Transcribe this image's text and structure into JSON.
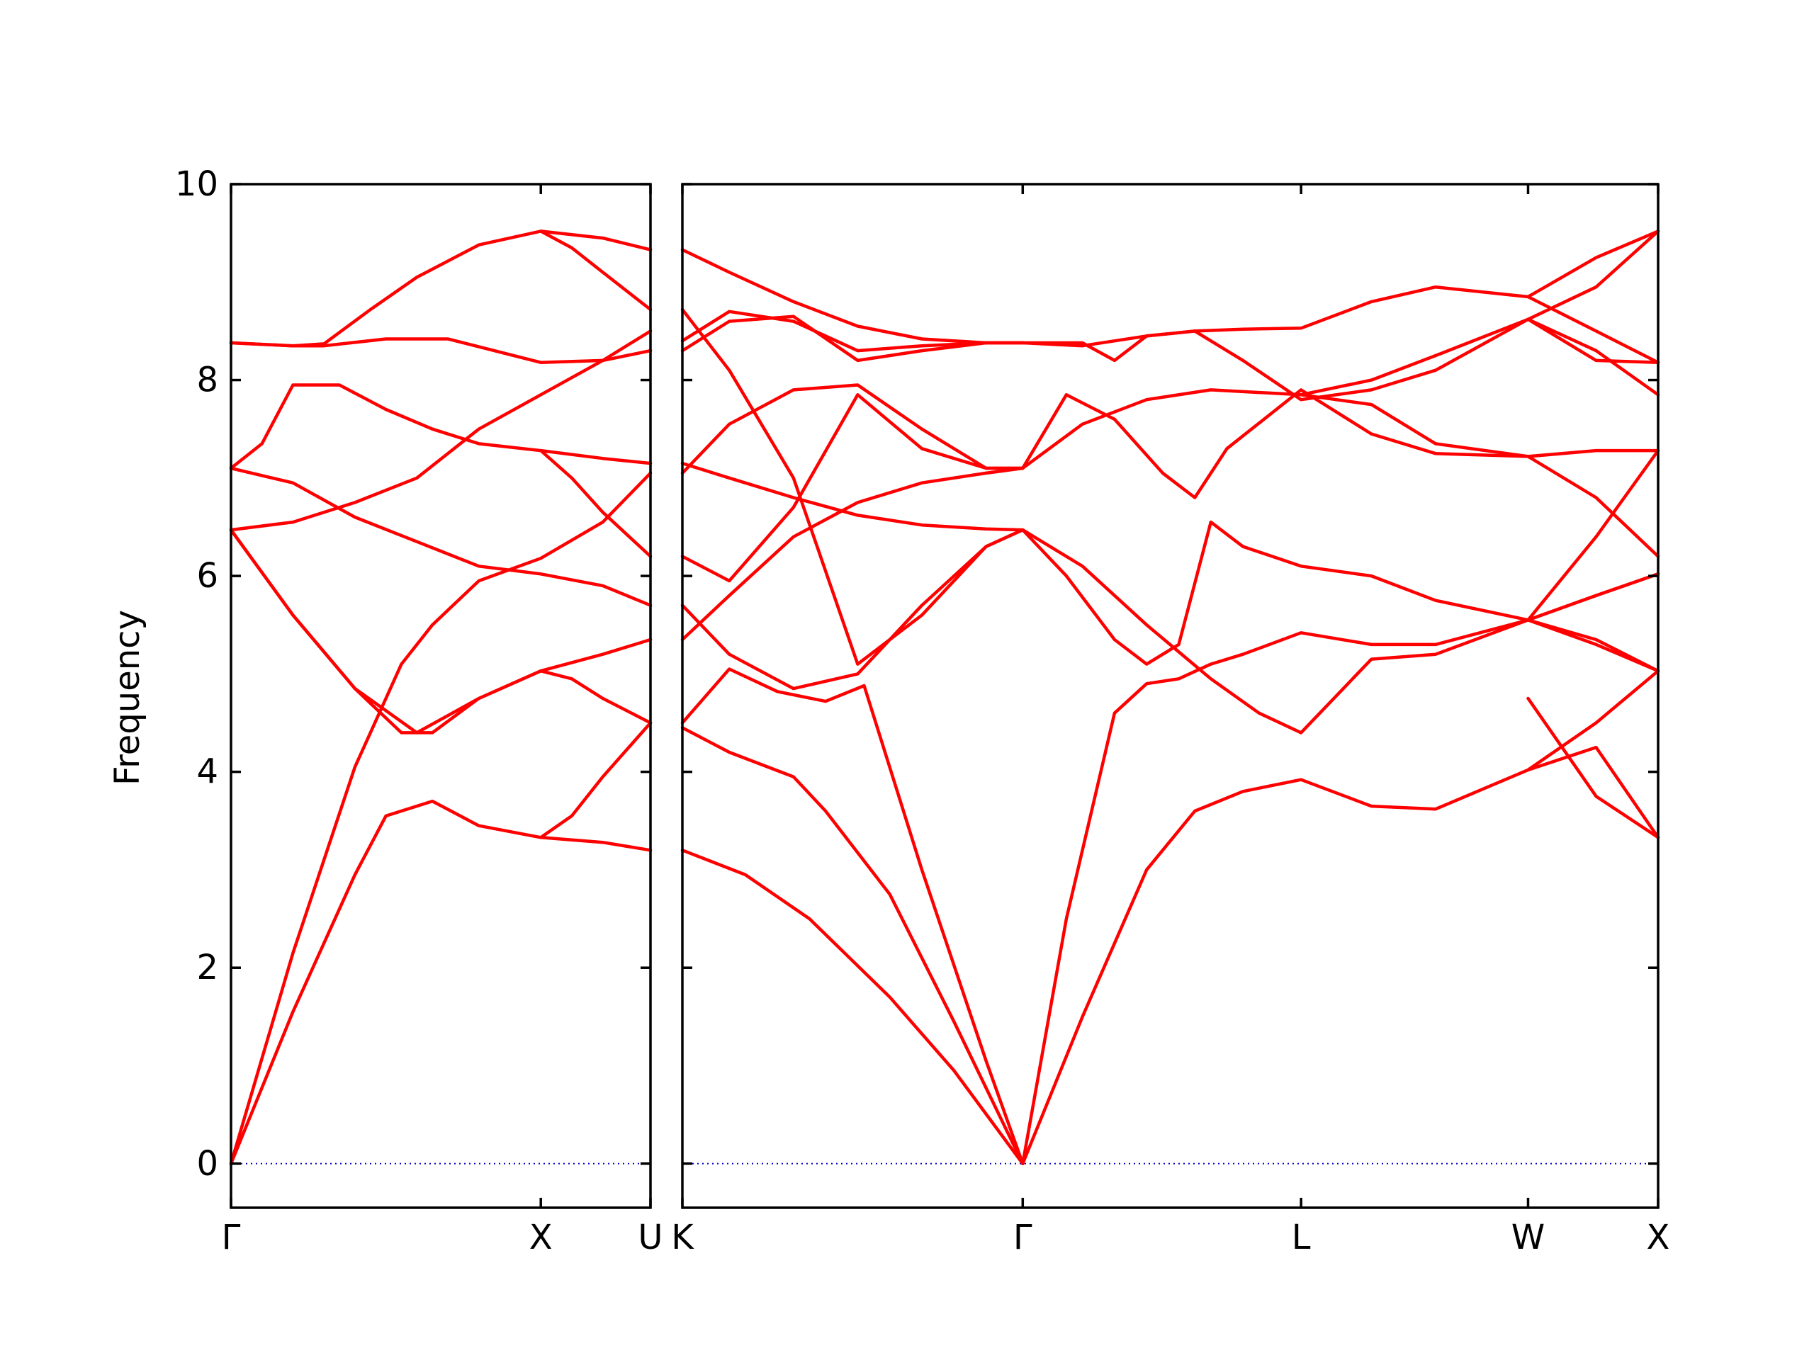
{
  "chart_data": {
    "type": "line",
    "title": "",
    "ylabel": "Frequency",
    "ylim": [
      -0.45,
      10
    ],
    "yticks": [
      0,
      2,
      4,
      6,
      8,
      10
    ],
    "y_tick_labels": [
      "0",
      "2",
      "4",
      "6",
      "8",
      "10"
    ],
    "line_color": "#ff0000",
    "zero_line_color": "#0000cc",
    "grid": false,
    "legend": "none",
    "panels": [
      {
        "xlim": [
          0,
          1.354
        ],
        "ticks": [
          {
            "x": 0,
            "label": "Γ"
          },
          {
            "x": 1.0,
            "label": "X"
          },
          {
            "x": 1.354,
            "label": "U"
          }
        ],
        "series": [
          {
            "x": [
              0,
              0.2,
              0.4,
              0.5,
              0.65,
              0.8,
              1.0,
              1.2,
              1.354
            ],
            "y": [
              0,
              1.55,
              2.95,
              3.55,
              3.7,
              3.45,
              3.33,
              3.28,
              3.2
            ]
          },
          {
            "x": [
              0,
              0.2,
              0.4,
              0.55,
              0.65,
              0.8,
              1.0,
              1.2,
              1.354
            ],
            "y": [
              0,
              2.15,
              4.05,
              5.1,
              5.5,
              5.95,
              6.18,
              6.55,
              7.05
            ]
          },
          {
            "x": [
              0,
              0.2,
              0.4,
              0.55,
              0.65,
              0.8,
              1.0,
              1.1,
              1.2,
              1.354
            ],
            "y": [
              6.47,
              5.6,
              4.85,
              4.4,
              4.4,
              4.75,
              5.03,
              4.95,
              4.75,
              4.5
            ]
          },
          {
            "x": [
              0,
              0.2,
              0.4,
              0.6,
              0.8,
              1.0,
              1.2,
              1.354
            ],
            "y": [
              7.1,
              6.95,
              6.6,
              6.35,
              6.1,
              6.02,
              5.9,
              5.7
            ]
          },
          {
            "x": [
              0,
              0.2,
              0.4,
              0.6,
              0.8,
              1.0,
              1.2,
              1.354
            ],
            "y": [
              6.47,
              6.55,
              6.75,
              7.0,
              7.5,
              7.85,
              8.2,
              8.5
            ]
          },
          {
            "x": [
              0,
              0.1,
              0.2,
              0.35,
              0.5,
              0.65,
              0.8,
              1.0,
              1.2,
              1.354
            ],
            "y": [
              7.1,
              7.35,
              7.95,
              7.95,
              7.7,
              7.5,
              7.35,
              7.28,
              7.2,
              7.15
            ]
          },
          {
            "x": [
              0,
              0.2,
              0.3,
              0.5,
              0.7,
              0.85,
              1.0,
              1.2,
              1.354
            ],
            "y": [
              8.38,
              8.35,
              8.35,
              8.42,
              8.42,
              8.3,
              8.18,
              8.2,
              8.3
            ]
          },
          {
            "x": [
              0,
              0.2,
              0.3,
              0.45,
              0.6,
              0.8,
              1.0,
              1.2,
              1.354
            ],
            "y": [
              8.38,
              8.35,
              8.37,
              8.72,
              9.05,
              9.38,
              9.52,
              9.45,
              9.33
            ]
          },
          {
            "x": [
              0,
              0.2,
              0.4,
              0.6,
              0.8,
              1.0,
              1.2,
              1.354
            ],
            "y": [
              6.47,
              5.6,
              4.85,
              4.4,
              4.75,
              5.03,
              5.2,
              5.35
            ]
          },
          {
            "x": [
              1.0,
              1.1,
              1.2,
              1.354
            ],
            "y": [
              3.33,
              3.55,
              3.95,
              4.5
            ]
          },
          {
            "x": [
              1.0,
              1.1,
              1.2,
              1.354
            ],
            "y": [
              7.28,
              7.0,
              6.65,
              6.2
            ]
          },
          {
            "x": [
              1.0,
              1.1,
              1.2,
              1.354
            ],
            "y": [
              9.52,
              9.35,
              9.1,
              8.72
            ]
          }
        ]
      },
      {
        "xlim": [
          1.354,
          4.393
        ],
        "ticks": [
          {
            "x": 1.354,
            "label": "K"
          },
          {
            "x": 2.414,
            "label": "Γ"
          },
          {
            "x": 3.281,
            "label": "L"
          },
          {
            "x": 3.988,
            "label": "W"
          },
          {
            "x": 4.393,
            "label": "X"
          }
        ],
        "series": [
          {
            "x": [
              1.354,
              1.55,
              1.75,
              2.0,
              2.2,
              2.414
            ],
            "y": [
              3.2,
              2.95,
              2.5,
              1.7,
              0.95,
              0
            ]
          },
          {
            "x": [
              1.354,
              1.5,
              1.7,
              1.8,
              2.0,
              2.2,
              2.414
            ],
            "y": [
              4.45,
              4.2,
              3.95,
              3.6,
              2.75,
              1.45,
              0
            ]
          },
          {
            "x": [
              1.354,
              1.5,
              1.65,
              1.8,
              1.92,
              2.1,
              2.3,
              2.414
            ],
            "y": [
              4.5,
              5.05,
              4.82,
              4.72,
              4.88,
              3.0,
              1.05,
              0
            ]
          },
          {
            "x": [
              2.414,
              2.6,
              2.8,
              2.95,
              3.1,
              3.281,
              3.5,
              3.7,
              3.988,
              4.2,
              4.393
            ],
            "y": [
              0,
              1.5,
              3.0,
              3.6,
              3.8,
              3.92,
              3.65,
              3.62,
              4.02,
              4.25,
              3.33
            ]
          },
          {
            "x": [
              2.414,
              2.55,
              2.7,
              2.8,
              2.9,
              3.0,
              3.1,
              3.281,
              3.5,
              3.7,
              3.988,
              4.2,
              4.393
            ],
            "y": [
              0,
              2.5,
              4.6,
              4.9,
              4.95,
              5.1,
              5.2,
              5.42,
              5.3,
              5.3,
              5.55,
              5.8,
              6.02
            ]
          },
          {
            "x": [
              2.414,
              2.6,
              2.8,
              3.0,
              3.15,
              3.281,
              3.5,
              3.7,
              3.988,
              4.2,
              4.393
            ],
            "y": [
              6.47,
              6.1,
              5.5,
              4.95,
              4.6,
              4.4,
              5.15,
              5.2,
              5.55,
              5.35,
              5.03
            ]
          },
          {
            "x": [
              2.414,
              2.55,
              2.7,
              2.8,
              2.9,
              3.0,
              3.1,
              3.281,
              3.5,
              3.7,
              3.988,
              4.2,
              4.393
            ],
            "y": [
              6.47,
              6.0,
              5.35,
              5.1,
              5.3,
              6.55,
              6.3,
              6.1,
              6.0,
              5.75,
              5.55,
              5.3,
              5.03
            ]
          },
          {
            "x": [
              2.414,
              2.6,
              2.8,
              3.0,
              3.281,
              3.5,
              3.7,
              3.988,
              4.2,
              4.393
            ],
            "y": [
              7.1,
              7.55,
              7.8,
              7.9,
              7.85,
              7.75,
              7.35,
              7.22,
              7.28,
              7.28
            ]
          },
          {
            "x": [
              2.414,
              2.55,
              2.7,
              2.85,
              2.95,
              3.05,
              3.281,
              3.5,
              3.7,
              3.988,
              4.2,
              4.393
            ],
            "y": [
              7.1,
              7.85,
              7.6,
              7.05,
              6.8,
              7.3,
              7.9,
              7.45,
              7.25,
              7.22,
              6.8,
              6.2
            ]
          },
          {
            "x": [
              2.414,
              2.6,
              2.8,
              2.95,
              3.1,
              3.281,
              3.5,
              3.7,
              3.988,
              4.2,
              4.393
            ],
            "y": [
              8.38,
              8.35,
              8.45,
              8.5,
              8.52,
              8.53,
              8.8,
              8.95,
              8.85,
              8.5,
              8.18
            ]
          },
          {
            "x": [
              2.414,
              2.6,
              2.7,
              2.8,
              2.95,
              3.1,
              3.281,
              3.5,
              3.7,
              3.988,
              4.2,
              4.393
            ],
            "y": [
              8.38,
              8.38,
              8.2,
              8.45,
              8.5,
              8.2,
              7.8,
              7.9,
              8.1,
              8.62,
              8.95,
              9.52
            ]
          },
          {
            "x": [
              3.281,
              3.5,
              3.7,
              3.988,
              4.2,
              4.393
            ],
            "y": [
              7.85,
              8.0,
              8.25,
              8.62,
              8.3,
              7.85
            ]
          },
          {
            "x": [
              3.988,
              4.2,
              4.393
            ],
            "y": [
              8.85,
              9.25,
              9.52
            ]
          },
          {
            "x": [
              3.988,
              4.2,
              4.393
            ],
            "y": [
              5.55,
              6.4,
              7.28
            ]
          },
          {
            "x": [
              3.988,
              4.2,
              4.393
            ],
            "y": [
              4.75,
              3.75,
              3.33
            ]
          },
          {
            "x": [
              3.988,
              4.2,
              4.393
            ],
            "y": [
              8.62,
              8.2,
              8.18
            ]
          },
          {
            "x": [
              3.988,
              4.2,
              4.393
            ],
            "y": [
              5.55,
              5.8,
              6.02
            ]
          },
          {
            "x": [
              3.988,
              4.2,
              4.393
            ],
            "y": [
              4.02,
              4.5,
              5.03
            ]
          },
          {
            "x": [
              1.354,
              1.5,
              1.7,
              1.9,
              2.1,
              2.3,
              2.414
            ],
            "y": [
              9.33,
              9.1,
              8.8,
              8.55,
              8.42,
              8.38,
              8.38
            ]
          },
          {
            "x": [
              1.354,
              1.5,
              1.7,
              1.9,
              2.1,
              2.3,
              2.414
            ],
            "y": [
              8.72,
              8.1,
              7.0,
              5.1,
              5.6,
              6.3,
              6.47
            ]
          },
          {
            "x": [
              1.354,
              1.5,
              1.7,
              1.9,
              2.1,
              2.3,
              2.414
            ],
            "y": [
              8.3,
              8.6,
              8.65,
              8.2,
              8.3,
              8.38,
              8.38
            ]
          },
          {
            "x": [
              1.354,
              1.5,
              1.7,
              1.9,
              2.1,
              2.3,
              2.414
            ],
            "y": [
              8.4,
              8.7,
              8.6,
              8.3,
              8.35,
              8.38,
              8.38
            ]
          },
          {
            "x": [
              1.354,
              1.5,
              1.7,
              1.9,
              2.1,
              2.3,
              2.414
            ],
            "y": [
              7.05,
              7.55,
              7.9,
              7.95,
              7.5,
              7.1,
              7.1
            ]
          },
          {
            "x": [
              1.354,
              1.5,
              1.7,
              1.9,
              2.1,
              2.3,
              2.414
            ],
            "y": [
              6.2,
              5.95,
              6.7,
              7.85,
              7.3,
              7.1,
              7.1
            ]
          },
          {
            "x": [
              1.354,
              1.5,
              1.7,
              1.9,
              2.1,
              2.3,
              2.414
            ],
            "y": [
              7.15,
              7.0,
              6.8,
              6.62,
              6.52,
              6.48,
              6.47
            ]
          },
          {
            "x": [
              1.354,
              1.5,
              1.7,
              1.9,
              2.1,
              2.3,
              2.414
            ],
            "y": [
              5.35,
              5.8,
              6.4,
              6.75,
              6.95,
              7.05,
              7.1
            ]
          },
          {
            "x": [
              1.354,
              1.5,
              1.7,
              1.9,
              2.1,
              2.3,
              2.414
            ],
            "y": [
              5.7,
              5.2,
              4.85,
              5.0,
              5.7,
              6.3,
              6.47
            ]
          }
        ]
      }
    ]
  }
}
